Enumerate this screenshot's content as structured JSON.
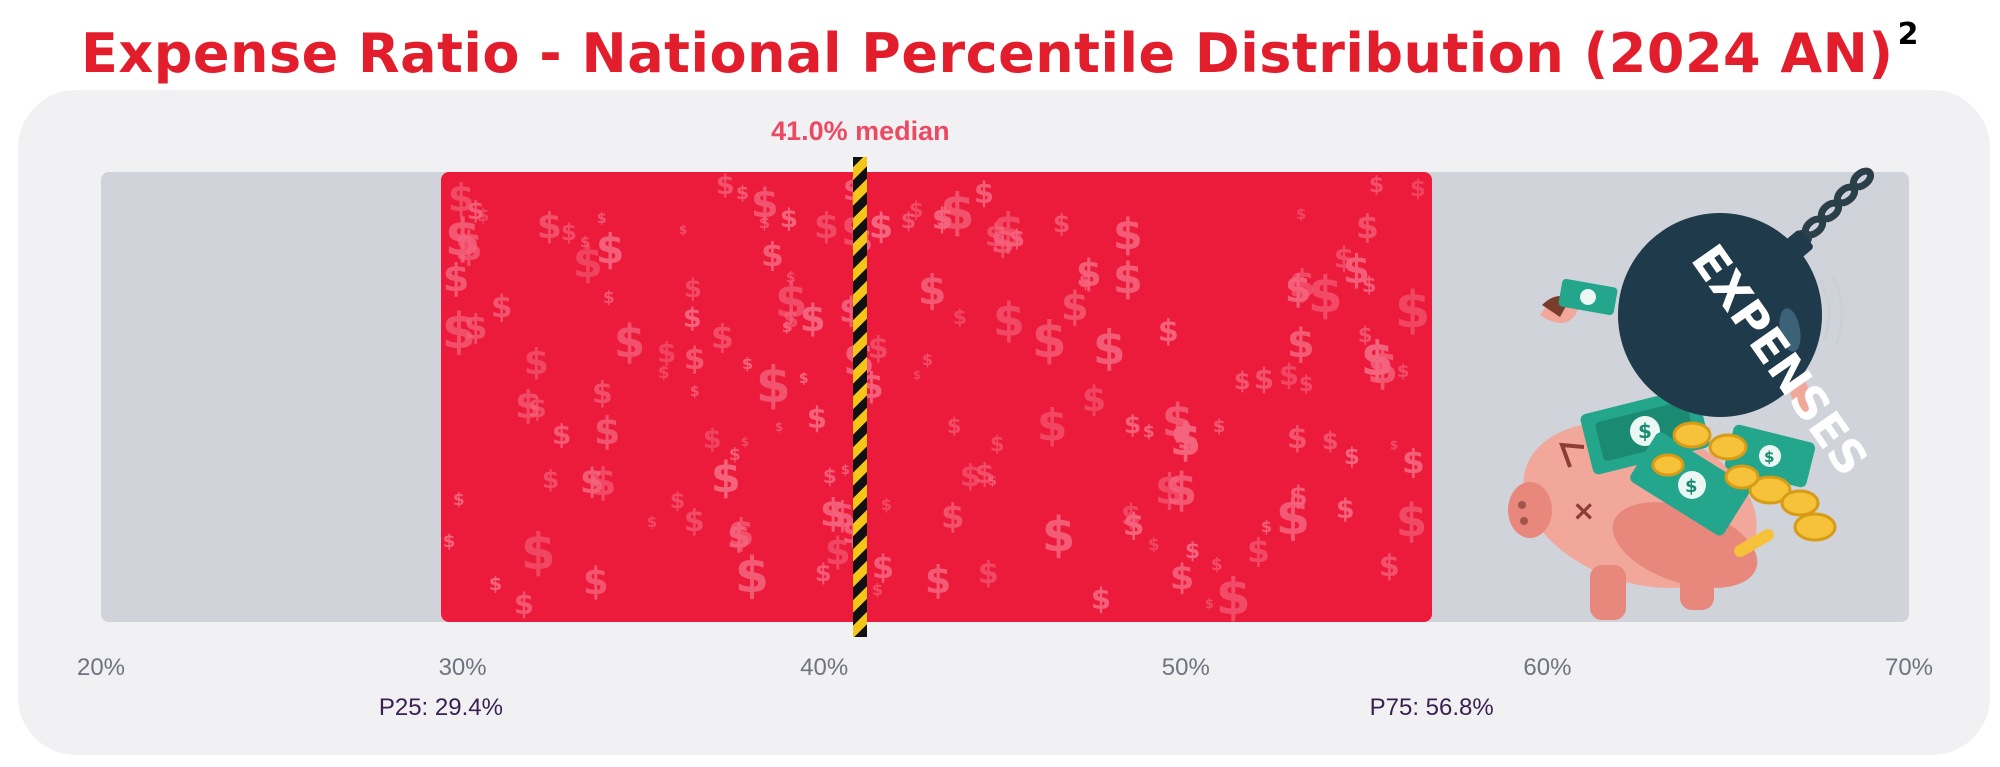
{
  "title": "Expense Ratio - National Percentile Distribution (2024 AN)",
  "title_superscript": "2",
  "colors": {
    "title": "#e21e2d",
    "iqr_band": "#ec1b3b",
    "track": "#d0d3d9",
    "panel": "#f1f0f3",
    "median_label": "#ec4a62",
    "percentile_label": "#3a1f4f"
  },
  "icons": {
    "dollar_pattern": "dollar-sign-icon",
    "median_marker": "hazard-stripe-line",
    "illustration": "wrecking-ball-piggy-bank"
  },
  "illustration": {
    "ball_text": "EXPENSES"
  },
  "chart_data": {
    "type": "box-range",
    "title": "Expense Ratio - National Percentile Distribution (2024 AN)",
    "x_axis": {
      "min": 20,
      "max": 70,
      "unit": "%",
      "ticks": [
        20,
        30,
        40,
        50,
        60,
        70
      ],
      "tick_labels": [
        "20%",
        "30%",
        "40%",
        "50%",
        "60%",
        "70%"
      ]
    },
    "p25": 29.4,
    "median": 41.0,
    "p75": 56.8,
    "labels": {
      "median": "41.0% median",
      "p25": "P25: 29.4%",
      "p75": "P75: 56.8%"
    }
  }
}
